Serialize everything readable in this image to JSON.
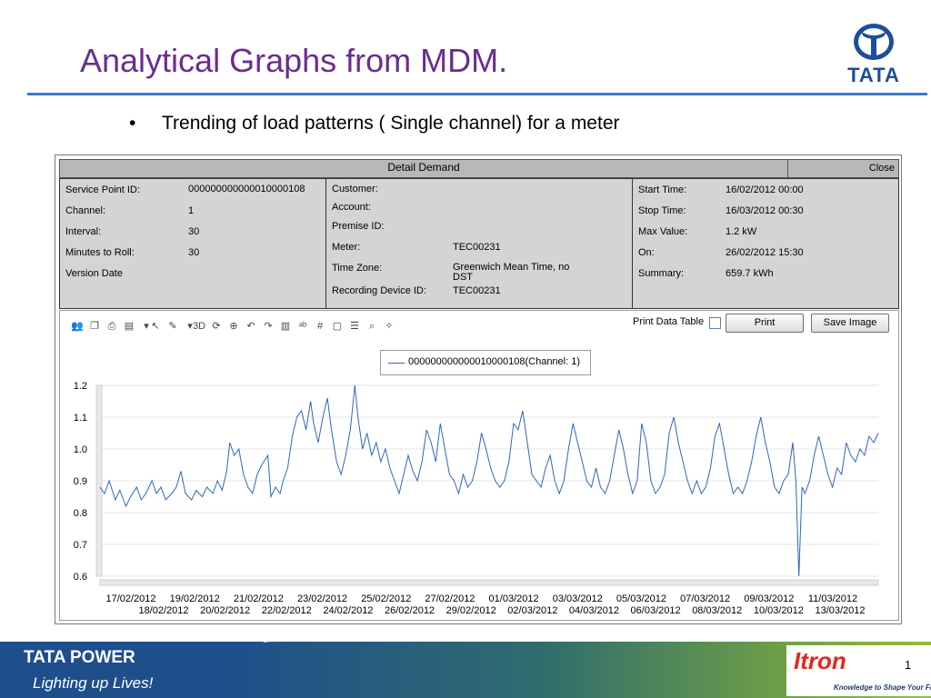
{
  "slide": {
    "title": "Analytical Graphs from MDM.",
    "bullet_marker": "•",
    "bullet": "Trending of load patterns ( Single channel) for a meter",
    "logo_text": "TATA",
    "page_number": "1"
  },
  "window": {
    "title": "Detail Demand",
    "close_label": "Close"
  },
  "info_left": [
    {
      "label": "Service Point ID:",
      "value": "000000000000010000108"
    },
    {
      "label": "Channel:",
      "value": "1"
    },
    {
      "label": "Interval:",
      "value": "30"
    },
    {
      "label": "Minutes to Roll:",
      "value": "30"
    },
    {
      "label": "Version Date",
      "value": ""
    }
  ],
  "info_mid": [
    {
      "label": "Customer:",
      "value": ""
    },
    {
      "label": "Account:",
      "value": ""
    },
    {
      "label": "Premise ID:",
      "value": ""
    },
    {
      "label": "Meter:",
      "value": "TEC00231"
    },
    {
      "label": "Time Zone:",
      "value": "Greenwich Mean Time, no DST"
    },
    {
      "label": "Recording Device ID:",
      "value": "TEC00231"
    }
  ],
  "info_right": [
    {
      "label": "Start Time:",
      "value": "16/02/2012 00:00"
    },
    {
      "label": "Stop Time:",
      "value": "16/03/2012 00:30"
    },
    {
      "label": "Max Value:",
      "value": "1.2 kW"
    },
    {
      "label": "On:",
      "value": "26/02/2012 15:30"
    },
    {
      "label": "Summary:",
      "value": "659.7 kWh"
    }
  ],
  "toolbar": {
    "icons": [
      "users-icon",
      "copy-icon",
      "print-icon",
      "chart-type-icon",
      "dropdown-arrow-icon",
      "select-icon",
      "palette-icon",
      "dropdown-arrow-icon",
      "3d-icon",
      "rotate-icon",
      "zoom-in-icon",
      "undo-icon",
      "redo-icon",
      "bars-icon",
      "abc-label-icon",
      "number-format-icon",
      "screen-icon",
      "legend-icon",
      "zoom-icon",
      "magic-wand-icon"
    ],
    "print_data_table_label": "Print Data Table",
    "print_label": "Print",
    "save_image_label": "Save Image"
  },
  "footer": {
    "brand": "TATA POWER",
    "tagline": "Lighting up Lives!",
    "partner": "Itron",
    "partner_tagline": "Knowledge to Shape Your Future"
  },
  "chart_data": {
    "type": "line",
    "legend_placement": "top-center",
    "series": [
      {
        "name": "000000000000010000108(Channel: 1)",
        "color": "#2e66c0",
        "points": [
          [
            0,
            0.88
          ],
          [
            0.3,
            0.86
          ],
          [
            0.6,
            0.9
          ],
          [
            1,
            0.84
          ],
          [
            1.3,
            0.87
          ],
          [
            1.7,
            0.82
          ],
          [
            2,
            0.85
          ],
          [
            2.4,
            0.88
          ],
          [
            2.7,
            0.84
          ],
          [
            3,
            0.86
          ],
          [
            3.4,
            0.9
          ],
          [
            3.7,
            0.86
          ],
          [
            4,
            0.88
          ],
          [
            4.3,
            0.84
          ],
          [
            4.7,
            0.86
          ],
          [
            5,
            0.88
          ],
          [
            5.3,
            0.93
          ],
          [
            5.6,
            0.86
          ],
          [
            6,
            0.84
          ],
          [
            6.3,
            0.87
          ],
          [
            6.7,
            0.85
          ],
          [
            7,
            0.88
          ],
          [
            7.4,
            0.86
          ],
          [
            7.7,
            0.9
          ],
          [
            8,
            0.87
          ],
          [
            8.3,
            0.93
          ],
          [
            8.5,
            1.02
          ],
          [
            8.8,
            0.98
          ],
          [
            9.1,
            1.0
          ],
          [
            9.4,
            0.92
          ],
          [
            9.7,
            0.88
          ],
          [
            10,
            0.86
          ],
          [
            10.3,
            0.92
          ],
          [
            10.6,
            0.95
          ],
          [
            11,
            0.98
          ],
          [
            11.2,
            0.85
          ],
          [
            11.5,
            0.88
          ],
          [
            11.8,
            0.86
          ],
          [
            12,
            0.9
          ],
          [
            12.3,
            0.94
          ],
          [
            12.6,
            1.04
          ],
          [
            12.9,
            1.1
          ],
          [
            13.2,
            1.12
          ],
          [
            13.5,
            1.06
          ],
          [
            13.8,
            1.15
          ],
          [
            14,
            1.08
          ],
          [
            14.3,
            1.02
          ],
          [
            14.6,
            1.1
          ],
          [
            14.9,
            1.16
          ],
          [
            15.2,
            1.05
          ],
          [
            15.5,
            0.96
          ],
          [
            15.8,
            0.92
          ],
          [
            16.1,
            0.98
          ],
          [
            16.4,
            1.06
          ],
          [
            16.7,
            1.2
          ],
          [
            16.9,
            1.1
          ],
          [
            17.2,
            1.0
          ],
          [
            17.5,
            1.05
          ],
          [
            17.8,
            0.98
          ],
          [
            18.1,
            1.02
          ],
          [
            18.4,
            0.96
          ],
          [
            18.7,
            1.0
          ],
          [
            19,
            0.94
          ],
          [
            19.3,
            0.9
          ],
          [
            19.6,
            0.86
          ],
          [
            19.9,
            0.92
          ],
          [
            20.2,
            0.98
          ],
          [
            20.5,
            0.93
          ],
          [
            20.8,
            0.9
          ],
          [
            21.1,
            0.96
          ],
          [
            21.4,
            1.06
          ],
          [
            21.7,
            1.02
          ],
          [
            22,
            0.96
          ],
          [
            22.3,
            1.08
          ],
          [
            22.6,
            1.0
          ],
          [
            22.9,
            0.92
          ],
          [
            23.2,
            0.9
          ],
          [
            23.5,
            0.86
          ],
          [
            23.8,
            0.92
          ],
          [
            24.1,
            0.88
          ],
          [
            24.4,
            0.9
          ],
          [
            24.7,
            0.96
          ],
          [
            25,
            1.05
          ],
          [
            25.3,
            1.0
          ],
          [
            25.6,
            0.94
          ],
          [
            25.9,
            0.9
          ],
          [
            26.2,
            0.88
          ],
          [
            26.5,
            0.9
          ],
          [
            26.8,
            0.96
          ],
          [
            27.1,
            1.08
          ],
          [
            27.4,
            1.06
          ],
          [
            27.7,
            1.12
          ],
          [
            28,
            1.02
          ],
          [
            28.3,
            0.92
          ],
          [
            28.6,
            0.9
          ],
          [
            28.9,
            0.88
          ],
          [
            29.2,
            0.94
          ],
          [
            29.5,
            0.98
          ],
          [
            29.8,
            0.9
          ],
          [
            30.1,
            0.86
          ],
          [
            30.4,
            0.9
          ],
          [
            30.7,
            1.0
          ],
          [
            31,
            1.08
          ],
          [
            31.3,
            1.02
          ],
          [
            31.6,
            0.96
          ],
          [
            31.9,
            0.9
          ],
          [
            32.2,
            0.88
          ],
          [
            32.5,
            0.94
          ],
          [
            32.8,
            0.88
          ],
          [
            33.1,
            0.86
          ],
          [
            33.4,
            0.9
          ],
          [
            33.7,
            0.98
          ],
          [
            34,
            1.06
          ],
          [
            34.3,
            1.0
          ],
          [
            34.6,
            0.92
          ],
          [
            34.9,
            0.86
          ],
          [
            35.2,
            0.9
          ],
          [
            35.5,
            1.08
          ],
          [
            35.8,
            1.02
          ],
          [
            36.1,
            0.9
          ],
          [
            36.4,
            0.86
          ],
          [
            36.7,
            0.88
          ],
          [
            37,
            0.92
          ],
          [
            37.3,
            1.05
          ],
          [
            37.6,
            1.1
          ],
          [
            37.9,
            1.02
          ],
          [
            38.2,
            0.96
          ],
          [
            38.5,
            0.9
          ],
          [
            38.8,
            0.86
          ],
          [
            39.1,
            0.9
          ],
          [
            39.4,
            0.86
          ],
          [
            39.7,
            0.88
          ],
          [
            40,
            0.94
          ],
          [
            40.3,
            1.04
          ],
          [
            40.6,
            1.08
          ],
          [
            40.9,
            1.0
          ],
          [
            41.2,
            0.92
          ],
          [
            41.5,
            0.86
          ],
          [
            41.8,
            0.88
          ],
          [
            42.1,
            0.86
          ],
          [
            42.4,
            0.9
          ],
          [
            42.7,
            0.96
          ],
          [
            43,
            1.04
          ],
          [
            43.3,
            1.1
          ],
          [
            43.6,
            1.02
          ],
          [
            43.9,
            0.96
          ],
          [
            44.2,
            0.88
          ],
          [
            44.5,
            0.86
          ],
          [
            44.8,
            0.9
          ],
          [
            45.1,
            0.92
          ],
          [
            45.4,
            1.02
          ],
          [
            45.6,
            0.9
          ],
          [
            45.8,
            0.6
          ],
          [
            46.0,
            0.88
          ],
          [
            46.2,
            0.86
          ],
          [
            46.5,
            0.9
          ],
          [
            46.8,
            0.98
          ],
          [
            47.1,
            1.04
          ],
          [
            47.4,
            0.98
          ],
          [
            47.7,
            0.92
          ],
          [
            48,
            0.88
          ],
          [
            48.3,
            0.94
          ],
          [
            48.6,
            0.92
          ],
          [
            48.9,
            1.02
          ],
          [
            49.2,
            0.98
          ],
          [
            49.5,
            0.96
          ],
          [
            49.8,
            1.0
          ],
          [
            50.1,
            0.98
          ],
          [
            50.4,
            1.04
          ],
          [
            50.7,
            1.02
          ],
          [
            51,
            1.05
          ]
        ]
      }
    ],
    "ylim": [
      0.6,
      1.2
    ],
    "y_ticks": [
      0.6,
      0.7,
      0.8,
      0.9,
      1.0,
      1.1,
      1.2
    ],
    "y_tick_labels": [
      "0.6",
      "0.7",
      "0.8",
      "0.9",
      "1.0",
      "1.1",
      "1.2"
    ],
    "xlim": [
      0,
      51
    ],
    "x_ticks_upper": [
      "17/02/2012",
      "19/02/2012",
      "21/02/2012",
      "23/02/2012",
      "25/02/2012",
      "27/02/2012",
      "01/03/2012",
      "03/03/2012",
      "05/03/2012",
      "07/03/2012",
      "09/03/2012",
      "11/03/2012"
    ],
    "x_ticks_lower": [
      "18/02/2012",
      "20/02/2012",
      "22/02/2012",
      "24/02/2012",
      "26/02/2012",
      "29/02/2012",
      "02/03/2012",
      "04/03/2012",
      "06/03/2012",
      "08/03/2012",
      "10/03/2012",
      "13/03/2012"
    ]
  }
}
